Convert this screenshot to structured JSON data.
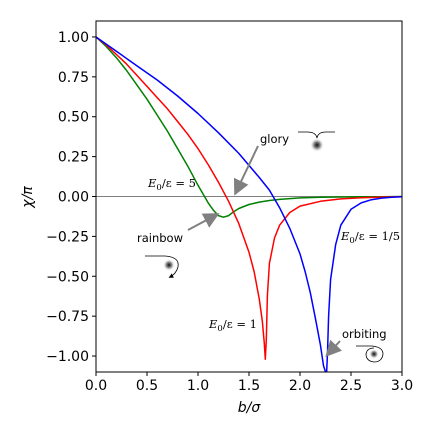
{
  "chart_data": {
    "type": "line",
    "xlabel": "b/σ",
    "ylabel": "χ/π",
    "xlim": [
      0.0,
      3.0
    ],
    "ylim": [
      -1.1,
      1.1
    ],
    "x_ticks": [
      "0.0",
      "0.5",
      "1.0",
      "1.5",
      "2.0",
      "2.5",
      "3.0"
    ],
    "y_ticks": [
      "1.00",
      "0.75",
      "0.50",
      "0.25",
      "0.00",
      "−0.25",
      "−0.50",
      "−0.75",
      "−1.00"
    ],
    "horizontal_reference_line": 0.0,
    "grid": false,
    "series": [
      {
        "label": "E₀/ε = 5",
        "color": "#008000",
        "x": [
          0.0,
          0.1,
          0.2,
          0.3,
          0.4,
          0.5,
          0.6,
          0.7,
          0.8,
          0.9,
          1.0,
          1.1,
          1.15,
          1.2,
          1.25,
          1.3,
          1.35,
          1.4,
          1.5,
          1.6,
          1.7,
          1.8,
          1.9,
          2.0,
          2.2,
          2.4,
          2.6,
          2.8,
          3.0
        ],
        "y": [
          1.0,
          0.94,
          0.87,
          0.79,
          0.7,
          0.61,
          0.51,
          0.41,
          0.3,
          0.19,
          0.07,
          -0.04,
          -0.085,
          -0.12,
          -0.13,
          -0.12,
          -0.095,
          -0.075,
          -0.05,
          -0.035,
          -0.025,
          -0.018,
          -0.013,
          -0.009,
          -0.005,
          -0.003,
          -0.002,
          -0.001,
          0.0
        ]
      },
      {
        "label": "E₀/ε = 1",
        "color": "#ff0000",
        "x": [
          0.0,
          0.1,
          0.2,
          0.3,
          0.4,
          0.5,
          0.6,
          0.7,
          0.8,
          0.9,
          1.0,
          1.1,
          1.2,
          1.3,
          1.4,
          1.5,
          1.55,
          1.6,
          1.63,
          1.65,
          1.66,
          1.67,
          1.68,
          1.7,
          1.75,
          1.8,
          1.9,
          2.0,
          2.2,
          2.4,
          2.6,
          2.8,
          3.0
        ],
        "y": [
          1.0,
          0.95,
          0.89,
          0.83,
          0.76,
          0.69,
          0.62,
          0.55,
          0.47,
          0.39,
          0.3,
          0.2,
          0.09,
          -0.03,
          -0.17,
          -0.35,
          -0.47,
          -0.64,
          -0.78,
          -0.92,
          -1.02,
          -0.9,
          -0.62,
          -0.42,
          -0.26,
          -0.18,
          -0.1,
          -0.06,
          -0.03,
          -0.015,
          -0.008,
          -0.004,
          -0.002
        ]
      },
      {
        "label": "E₀/ε = 1/5",
        "color": "#0000ff",
        "x": [
          0.0,
          0.2,
          0.4,
          0.6,
          0.8,
          1.0,
          1.2,
          1.4,
          1.6,
          1.7,
          1.8,
          1.9,
          2.0,
          2.05,
          2.1,
          2.15,
          2.2,
          2.23,
          2.26,
          2.27,
          2.28,
          2.3,
          2.35,
          2.4,
          2.5,
          2.6,
          2.7,
          2.8,
          2.9,
          3.0
        ],
        "y": [
          1.0,
          0.91,
          0.82,
          0.73,
          0.63,
          0.52,
          0.4,
          0.27,
          0.12,
          0.04,
          -0.07,
          -0.2,
          -0.36,
          -0.47,
          -0.6,
          -0.76,
          -0.93,
          -1.06,
          -1.12,
          -0.98,
          -0.75,
          -0.52,
          -0.3,
          -0.18,
          -0.08,
          -0.04,
          -0.02,
          -0.01,
          -0.005,
          -0.002
        ]
      }
    ],
    "annotations": [
      {
        "text": "glory"
      },
      {
        "text": "rainbow"
      },
      {
        "text": "orbiting"
      }
    ],
    "curve_labels": [
      {
        "series": 0,
        "prefix": "E",
        "sub": "0",
        "suffix": "/ε = 5"
      },
      {
        "series": 1,
        "prefix": "E",
        "sub": "0",
        "suffix": "/ε = 1"
      },
      {
        "series": 2,
        "prefix": "E",
        "sub": "0",
        "suffix": "/ε = 1/5"
      }
    ]
  }
}
